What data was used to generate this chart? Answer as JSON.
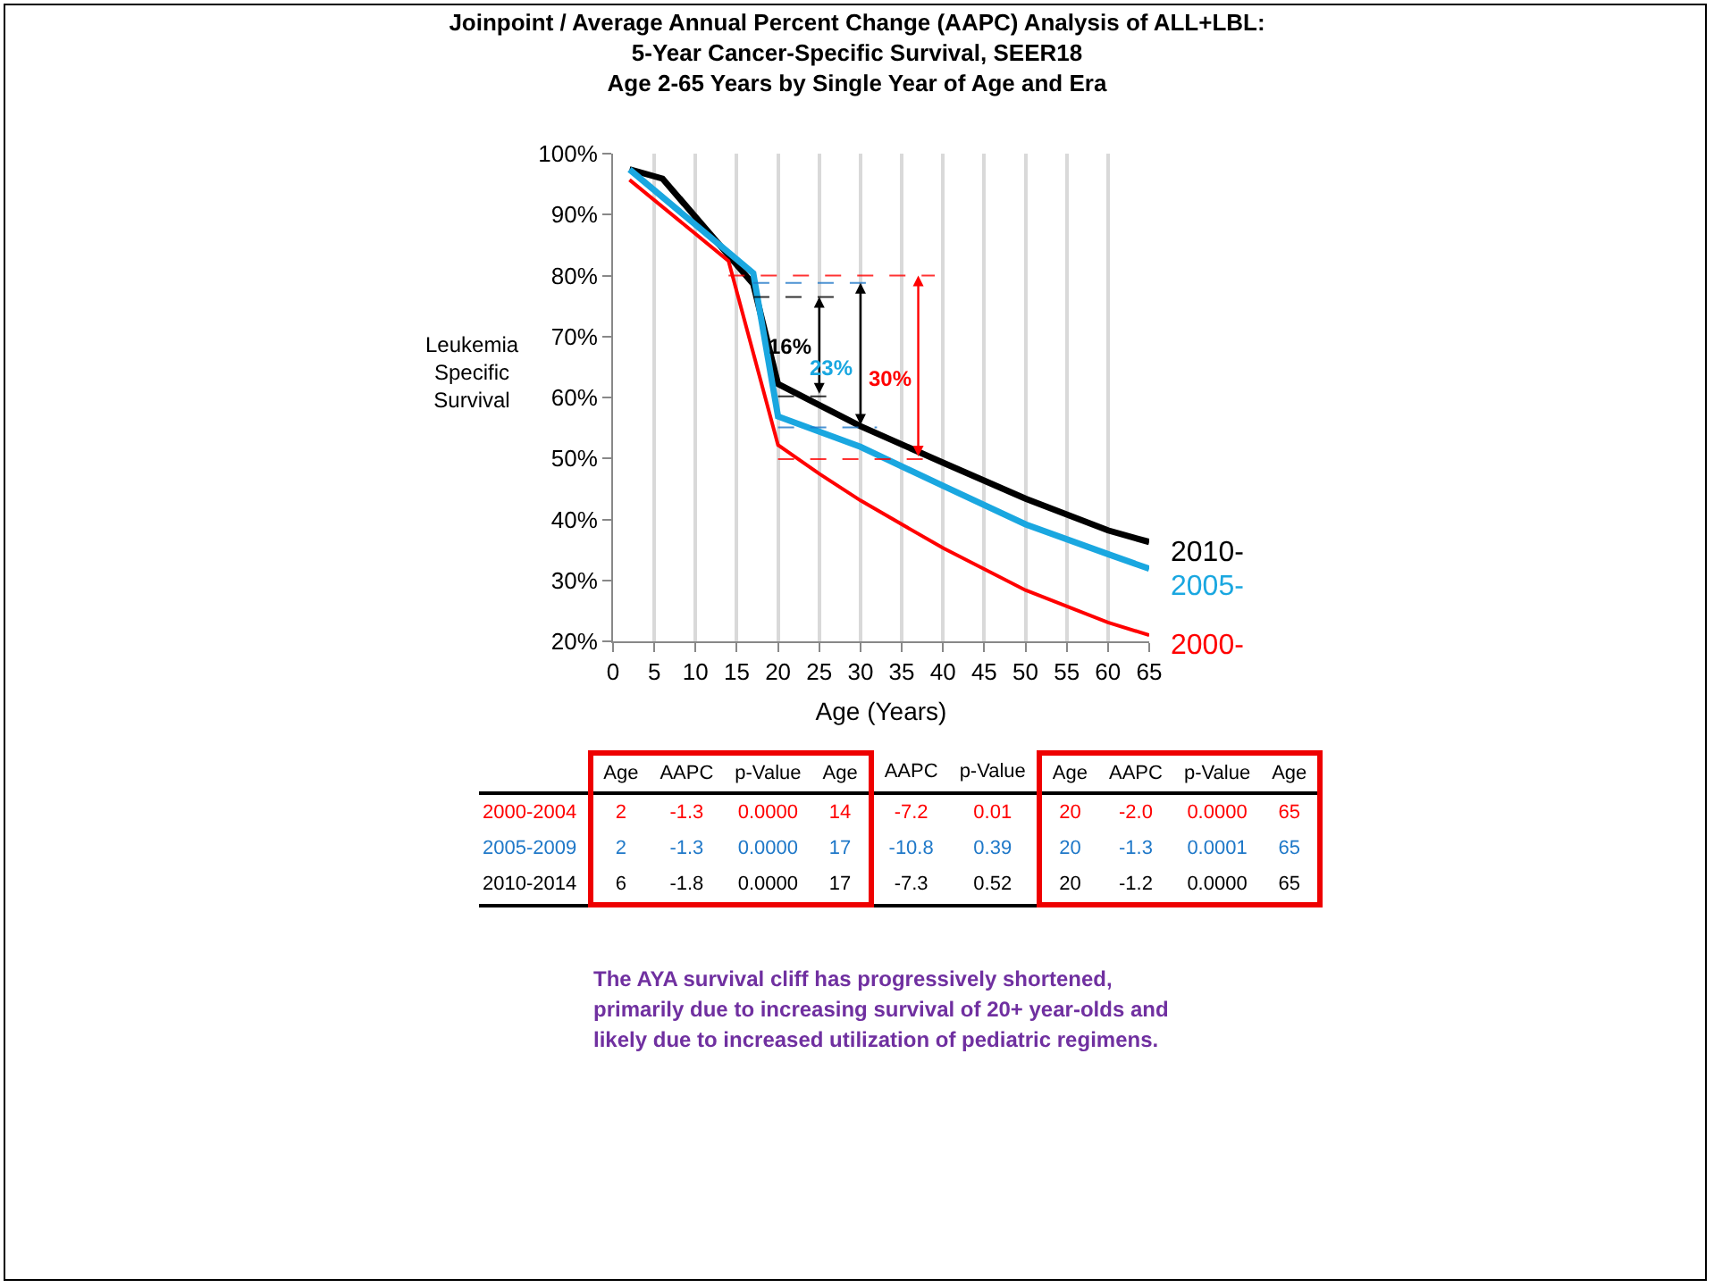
{
  "chart_data": [
    {
      "type": "line",
      "title": "Joinpoint / Average Annual Percent Change (AAPC) Analysis of ALL+LBL:\n5-Year Cancer-Specific Survival, SEER18\nAge 2-65 Years by Single Year of Age and Era",
      "xlabel": "Age (Years)",
      "ylabel": "Leukemia Specific Survival",
      "xlim": [
        0,
        65
      ],
      "xticks": [
        0,
        5,
        10,
        15,
        20,
        25,
        30,
        35,
        40,
        45,
        50,
        55,
        60,
        65
      ],
      "ylim": [
        20,
        100
      ],
      "yticks": [
        {
          "value": 20,
          "label": "20%"
        },
        {
          "value": 30,
          "label": "30%"
        },
        {
          "value": 40,
          "label": "40%"
        },
        {
          "value": 50,
          "label": "50%"
        },
        {
          "value": 60,
          "label": "60%"
        },
        {
          "value": 70,
          "label": "70%"
        },
        {
          "value": 80,
          "label": "80%"
        },
        {
          "value": 90,
          "label": "90%"
        },
        {
          "value": 100,
          "label": "100%"
        }
      ],
      "grid": "x",
      "legend": false,
      "marker": "none",
      "series": [
        {
          "name": "2010-",
          "color": "#000000",
          "x": [
            2,
            6,
            17,
            20,
            30,
            40,
            50,
            60,
            65
          ],
          "values": [
            97.4,
            95.9,
            78.6,
            62.2,
            55.3,
            49.3,
            43.4,
            38.2,
            36.3
          ]
        },
        {
          "name": "2005-",
          "color": "#1aa7e0",
          "x": [
            2,
            17,
            20,
            30,
            40,
            50,
            60,
            65
          ],
          "values": [
            97.4,
            80.4,
            56.9,
            51.9,
            45.5,
            39.2,
            34.3,
            31.9
          ]
        },
        {
          "name": "2000-",
          "color": "#ff0000",
          "x": [
            2,
            14,
            20,
            25,
            30,
            40,
            50,
            60,
            65
          ],
          "values": [
            95.7,
            82.4,
            52.2,
            47.5,
            43.1,
            35.3,
            28.4,
            23.1,
            21.0
          ]
        }
      ],
      "ref_lines": [
        {
          "axis": "y",
          "value": 76.5,
          "color": "#000000",
          "line_style": "dashed"
        },
        {
          "axis": "y",
          "value": 60.2,
          "color": "#000000",
          "line_style": "dashed"
        },
        {
          "axis": "y",
          "value": 78.8,
          "color": "#1f78c8",
          "line_style": "dashed"
        },
        {
          "axis": "y",
          "value": 55.1,
          "color": "#1f78c8",
          "line_style": "dashed"
        },
        {
          "axis": "y",
          "value": 80,
          "color": "#ff0000",
          "line_style": "dashed"
        },
        {
          "axis": "y",
          "value": 49.9,
          "color": "#ff0000",
          "line_style": "dashed"
        }
      ],
      "annotations": [
        "16%",
        "23%",
        "30%"
      ]
    },
    {
      "type": "other",
      "categories": [
        "Age",
        "AAPC",
        "p-Value",
        "Age",
        "AAPC",
        "p-Value",
        "Age",
        "AAPC",
        "p-Value",
        "Age"
      ],
      "y_categories": [
        "2000-2004",
        "2005-2009",
        "2010-2014"
      ],
      "colors": [
        "#ff0000",
        "#1f78c8",
        "#000000"
      ],
      "cell_labels": [
        [
          "2",
          "-1.3",
          "0.0000",
          "14",
          "-7.2",
          "0.01",
          "20",
          "-2.0",
          "0.0000",
          "65"
        ],
        [
          "2",
          "-1.3",
          "0.0000",
          "17",
          "-10.8",
          "0.39",
          "20",
          "-1.3",
          "0.0001",
          "65"
        ],
        [
          "6",
          "-1.8",
          "0.0000",
          "17",
          "-7.3",
          "0.52",
          "20",
          "-1.2",
          "0.0000",
          "65"
        ]
      ],
      "annotations": [
        "The AYA survival cliff has progressively shortened, primarily due to increasing survival of 20+ year-olds and likely due to increased utilization of pediatric regimens."
      ]
    }
  ]
}
